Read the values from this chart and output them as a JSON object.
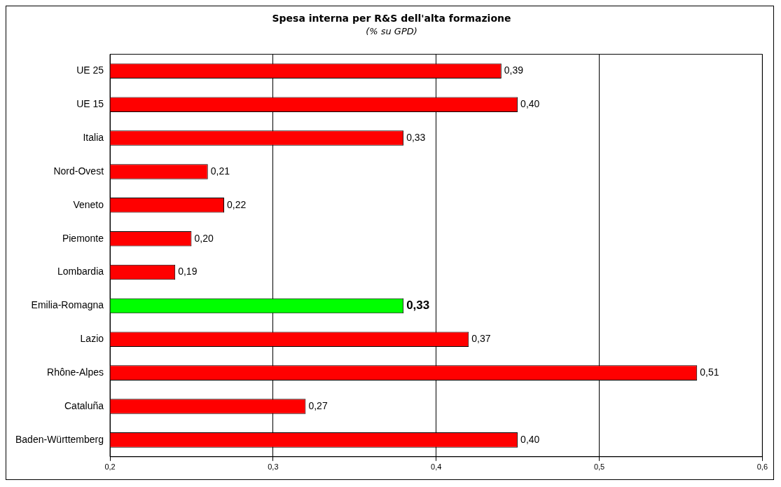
{
  "chart_data": {
    "type": "bar",
    "orientation": "horizontal",
    "title": "Spesa interna per R&S dell'alta formazione",
    "subtitle": "(% su GPD)",
    "categories": [
      "UE 25",
      "UE 15",
      "Italia",
      "Nord-Ovest",
      "Veneto",
      "Piemonte",
      "Lombardia",
      "Emilia-Romagna",
      "Lazio",
      "Rhône-Alpes",
      "Cataluña",
      "Baden-Württemberg"
    ],
    "values": [
      0.39,
      0.4,
      0.33,
      0.21,
      0.22,
      0.2,
      0.19,
      0.33,
      0.37,
      0.51,
      0.27,
      0.4
    ],
    "colors": [
      "#ff0000",
      "#ff0000",
      "#ff0000",
      "#ff0000",
      "#ff0000",
      "#ff0000",
      "#ff0000",
      "#00ff00",
      "#ff0000",
      "#ff0000",
      "#ff0000",
      "#ff0000"
    ],
    "xlim": [
      0.15,
      0.55
    ],
    "xticks": [
      {
        "value": 0.15,
        "label": "0,2"
      },
      {
        "value": 0.25,
        "label": "0,3"
      },
      {
        "value": 0.35,
        "label": "0,4"
      },
      {
        "value": 0.45,
        "label": "0,5"
      },
      {
        "value": 0.55,
        "label": "0,6"
      }
    ],
    "value_labels": [
      "0,39",
      "0,40",
      "0,33",
      "0,21",
      "0,22",
      "0,20",
      "0,19",
      "0,33",
      "0,37",
      "0,51",
      "0,27",
      "0,40"
    ],
    "grid": "x",
    "legend": false
  }
}
